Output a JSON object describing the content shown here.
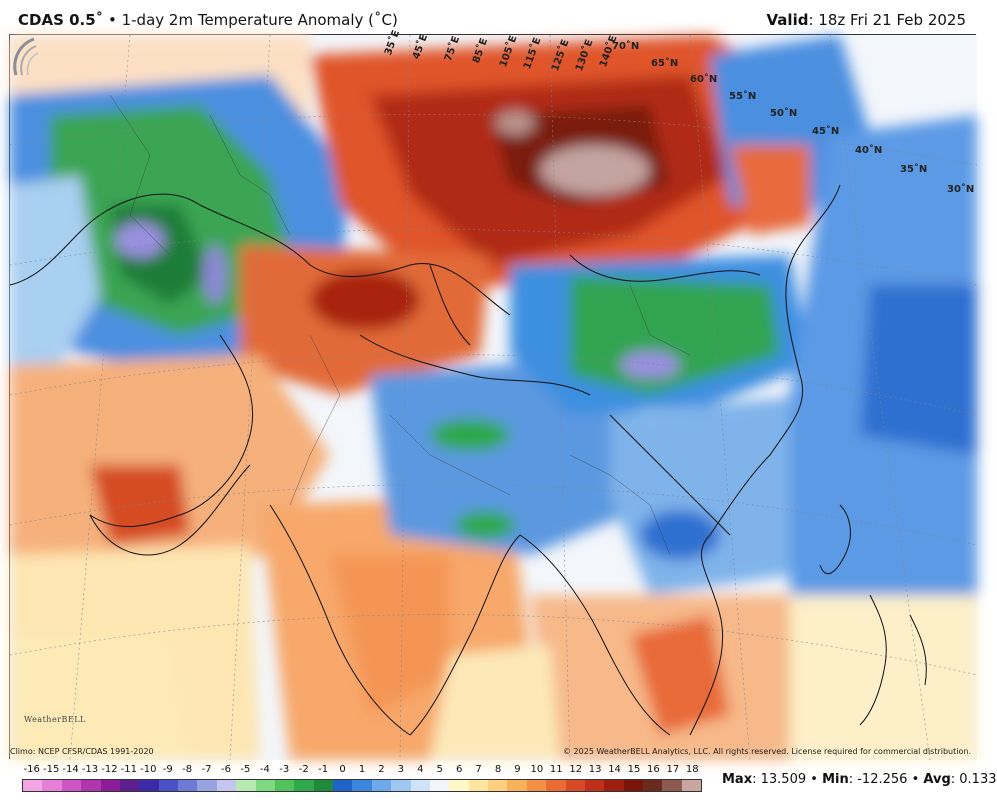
{
  "header": {
    "brand": "CDAS 0.5˚",
    "bullet": "•",
    "product": "1-day 2m Temperature Anomaly (˚C)",
    "valid_label": "Valid",
    "valid_value": ": 18z Fri 21 Feb 2025"
  },
  "map": {
    "lat_labels": [
      "70˚N",
      "65˚N",
      "60˚N",
      "55˚N",
      "50˚N",
      "45˚N",
      "40˚N",
      "35˚N",
      "30˚N"
    ],
    "lon_labels": [
      "35˚E",
      "45˚E",
      "75˚E",
      "85˚E",
      "105˚E",
      "115˚E",
      "125˚E",
      "130˚E",
      "140˚E"
    ],
    "colors": {
      "ocean_cool": "#3a7fd6",
      "land_warm": "#e0542a",
      "hot_core": "#8b1a0c",
      "cold_green": "#2ea84a",
      "neutral": "#f4f7fb"
    }
  },
  "logo": {
    "text": "WeatherBELL"
  },
  "footer": {
    "climo": "Climo: NCEP CFSR/CDAS 1991-2020",
    "copyright": "© 2025 WeatherBELL Analytics, LLC. All rights reserved. License required for commercial distribution."
  },
  "legend": {
    "ticks": [
      "-16",
      "-15",
      "-14",
      "-13",
      "-12",
      "-11",
      "-10",
      "-9",
      "-8",
      "-7",
      "-6",
      "-5",
      "-4",
      "-3",
      "-2",
      "-1",
      "0",
      "1",
      "2",
      "3",
      "4",
      "5",
      "6",
      "7",
      "8",
      "9",
      "10",
      "11",
      "12",
      "13",
      "14",
      "15",
      "16",
      "17",
      "18"
    ],
    "colors": [
      "#f3a6e6",
      "#e57fd7",
      "#cf55c4",
      "#b335ad",
      "#8e1c96",
      "#5a1f8c",
      "#3b2aa8",
      "#4a52c8",
      "#6c7ad8",
      "#9aa3e2",
      "#c4c6ef",
      "#b7e9b3",
      "#7fd981",
      "#4fc25a",
      "#2ea84a",
      "#1f8a3c",
      "#1e63c8",
      "#3c86de",
      "#6ea9ea",
      "#9ec8f2",
      "#cfe3f8",
      "#f2f6fb",
      "#fff7c7",
      "#fde7a0",
      "#fcd07c",
      "#f9b25c",
      "#f48f44",
      "#ea6b33",
      "#d84a25",
      "#bf301b",
      "#9e1f12",
      "#7a150c",
      "#6b2a20",
      "#8c5a50",
      "#c9a7a0"
    ]
  },
  "stats": {
    "max_label": "Max",
    "max_value": ": 13.509",
    "min_label": "Min",
    "min_value": ": -12.256",
    "avg_label": "Avg",
    "avg_value": ": 0.133",
    "sep": "•"
  }
}
